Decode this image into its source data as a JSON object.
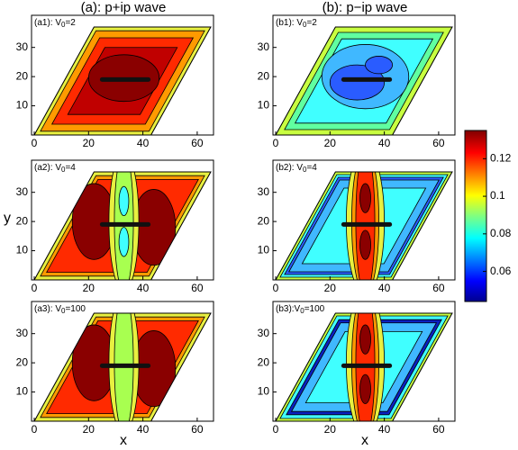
{
  "column_titles": [
    "(a): p+ip wave",
    "(b): p−ip wave"
  ],
  "axis_labels": {
    "x": "x",
    "y": "y"
  },
  "panels": [
    {
      "label": {
        "prefix": "(a1): V",
        "sub": "0",
        "suffix": "=2"
      },
      "xlim": [
        -1,
        66
      ],
      "ylim": [
        0,
        41
      ],
      "xticks": [
        0,
        20,
        40,
        60
      ],
      "yticks": [
        10,
        20,
        30
      ]
    },
    {
      "label": {
        "prefix": "(b1): V",
        "sub": "0",
        "suffix": "=2"
      },
      "xlim": [
        -1,
        66
      ],
      "ylim": [
        0,
        41
      ],
      "xticks": [
        0,
        20,
        40,
        60
      ],
      "yticks": [
        10,
        20,
        30
      ]
    },
    {
      "label": {
        "prefix": "(a2): V",
        "sub": "0",
        "suffix": "=4"
      },
      "xlim": [
        -1,
        66
      ],
      "ylim": [
        0,
        41
      ],
      "xticks": [
        0,
        20,
        40,
        60
      ],
      "yticks": [
        10,
        20,
        30
      ]
    },
    {
      "label": {
        "prefix": "(b2): V",
        "sub": "0",
        "suffix": "=4"
      },
      "xlim": [
        -1,
        66
      ],
      "ylim": [
        0,
        41
      ],
      "xticks": [
        0,
        20,
        40,
        60
      ],
      "yticks": [
        10,
        20,
        30
      ]
    },
    {
      "label": {
        "prefix": "(a3): V",
        "sub": "0",
        "suffix": "=100"
      },
      "xlim": [
        -1,
        66
      ],
      "ylim": [
        0,
        41
      ],
      "xticks": [
        0,
        20,
        40,
        60
      ],
      "yticks": [
        10,
        20,
        30
      ]
    },
    {
      "label": {
        "prefix": "(b3):V",
        "sub": "0",
        "suffix": "=100"
      },
      "xlim": [
        -1,
        66
      ],
      "ylim": [
        0,
        41
      ],
      "xticks": [
        0,
        20,
        40,
        60
      ],
      "yticks": [
        10,
        20,
        30
      ]
    }
  ],
  "colorbar": {
    "lim": [
      0.044,
      0.135
    ],
    "ticks": [
      0.06,
      0.08,
      0.1,
      0.12
    ]
  }
}
